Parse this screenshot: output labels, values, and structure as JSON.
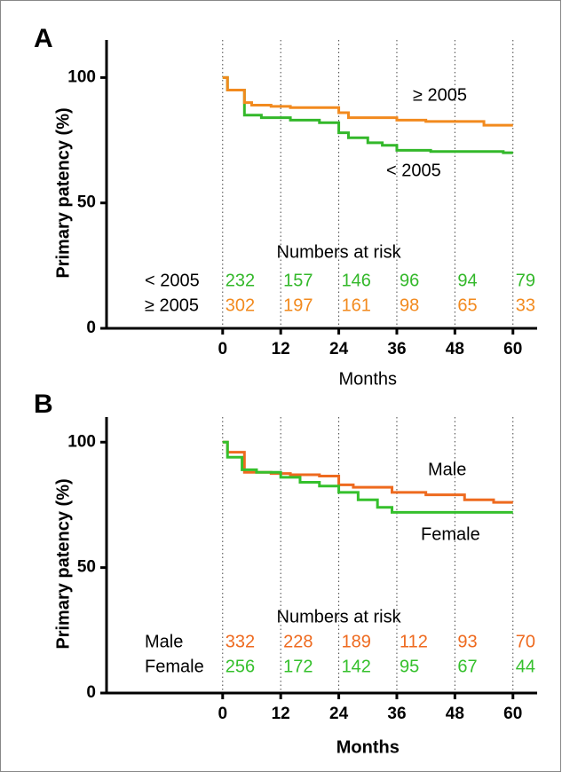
{
  "chart_data": [
    {
      "type": "line",
      "panel": "A",
      "ylabel": "Primary patency  (%)",
      "xlabel": "Months",
      "at_risk_title": "Numbers at risk",
      "xlim": [
        -24,
        65
      ],
      "xticks": [
        0,
        12,
        24,
        36,
        48,
        60
      ],
      "ylim": [
        0,
        115
      ],
      "yticks": [
        0,
        50,
        100
      ],
      "grid": true,
      "series": [
        {
          "name": "< 2005",
          "color": "#33b82a",
          "x": [
            0,
            1,
            1,
            4.5,
            4.5,
            8,
            8,
            14,
            14,
            20,
            20,
            24,
            24,
            26,
            26,
            30,
            30,
            33,
            33,
            36,
            36,
            43,
            43,
            58,
            58,
            60
          ],
          "values": [
            100,
            100,
            95,
            95,
            85,
            85,
            84,
            84,
            83,
            83,
            82,
            82,
            78,
            78,
            76,
            76,
            74,
            74,
            73,
            73,
            71,
            71,
            70.5,
            70.5,
            70,
            70
          ],
          "at_risk": [
            232,
            157,
            146,
            96,
            94,
            79
          ]
        },
        {
          "name": "≥ 2005",
          "color": "#f28a1e",
          "x": [
            0,
            1,
            1,
            4.5,
            4.5,
            6,
            6,
            10,
            10,
            14,
            14,
            24,
            24,
            26,
            26,
            36,
            36,
            42,
            42,
            54,
            54,
            60
          ],
          "values": [
            100,
            100,
            95,
            95,
            90,
            90,
            89,
            89,
            88.5,
            88.5,
            88,
            88,
            86,
            86,
            84,
            84,
            83,
            83,
            82.5,
            82.5,
            81,
            81
          ],
          "at_risk": [
            302,
            197,
            161,
            98,
            65,
            33
          ]
        }
      ]
    },
    {
      "type": "line",
      "panel": "B",
      "ylabel": "Primary patency  (%)",
      "xlabel": "Months",
      "at_risk_title": "Numbers at risk",
      "xlim": [
        -24,
        65
      ],
      "xticks": [
        0,
        12,
        24,
        36,
        48,
        60
      ],
      "ylim": [
        0,
        110
      ],
      "yticks": [
        0,
        50,
        100
      ],
      "grid": true,
      "series": [
        {
          "name": "Male",
          "color": "#ee6a1f",
          "x": [
            0,
            1,
            1,
            4.5,
            4.5,
            10,
            10,
            14,
            14,
            20,
            20,
            24,
            24,
            27,
            27,
            35,
            35,
            42,
            42,
            50,
            50,
            56,
            56,
            60
          ],
          "values": [
            100,
            100,
            96,
            96,
            88,
            88,
            87.5,
            87.5,
            87,
            87,
            86.5,
            86.5,
            83,
            83,
            82,
            82,
            80,
            80,
            79,
            79,
            77,
            77,
            76,
            76
          ],
          "at_risk": [
            332,
            228,
            189,
            112,
            93,
            70
          ]
        },
        {
          "name": "Female",
          "color": "#35c02c",
          "x": [
            0,
            1,
            1,
            4,
            4,
            7,
            7,
            12,
            12,
            16,
            16,
            20,
            20,
            24,
            24,
            28,
            28,
            32,
            32,
            35,
            35,
            60
          ],
          "values": [
            100,
            100,
            94,
            94,
            89,
            89,
            88,
            88,
            86,
            86,
            84,
            84,
            82.5,
            82.5,
            80,
            80,
            77,
            77,
            74,
            74,
            72,
            72
          ],
          "at_risk": [
            256,
            172,
            142,
            95,
            67,
            44
          ]
        }
      ]
    }
  ]
}
